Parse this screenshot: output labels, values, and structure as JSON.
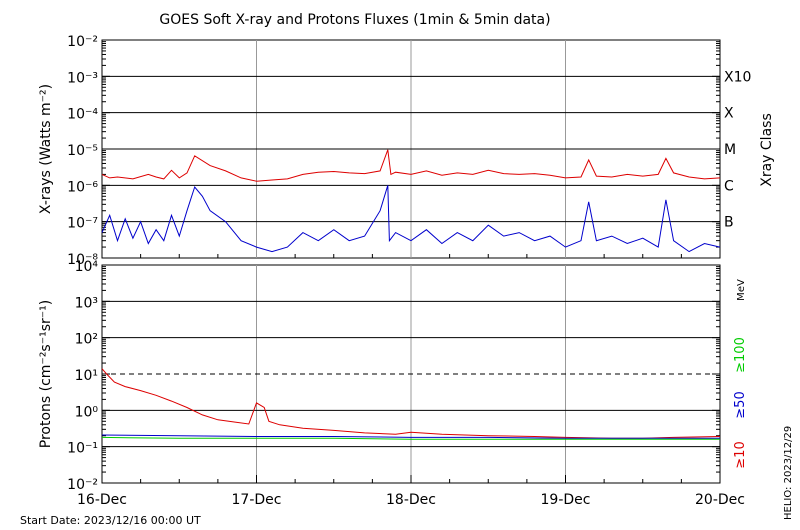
{
  "title": "GOES Soft X-ray and Protons Fluxes   (1min & 5min data)",
  "footer": {
    "start_date": "Start Date: 2023/12/16 00:00 UT",
    "stamp": "HELIO: 2023/12/29"
  },
  "chart_data": [
    {
      "type": "line",
      "panel": "xray",
      "ylabel": "X-rays (Watts m⁻²)",
      "yscale": "log",
      "ylim_exp": [
        -8,
        -2
      ],
      "ytick_exps": [
        -8,
        -7,
        -6,
        -5,
        -4,
        -3,
        -2
      ],
      "right_label": "Xray Class",
      "class_labels": [
        {
          "label": "X10",
          "exp": -3
        },
        {
          "label": "X",
          "exp": -4
        },
        {
          "label": "M",
          "exp": -5
        },
        {
          "label": "C",
          "exp": -6
        },
        {
          "label": "B",
          "exp": -7
        }
      ],
      "series": [
        {
          "color": "#dd0000",
          "points": [
            [
              0,
              2e-06
            ],
            [
              0.05,
              1.6e-06
            ],
            [
              0.1,
              1.7e-06
            ],
            [
              0.2,
              1.5e-06
            ],
            [
              0.3,
              2e-06
            ],
            [
              0.35,
              1.7e-06
            ],
            [
              0.4,
              1.5e-06
            ],
            [
              0.45,
              2.6e-06
            ],
            [
              0.5,
              1.6e-06
            ],
            [
              0.55,
              2.2e-06
            ],
            [
              0.6,
              6.5e-06
            ],
            [
              0.7,
              3.5e-06
            ],
            [
              0.8,
              2.5e-06
            ],
            [
              0.9,
              1.6e-06
            ],
            [
              1.0,
              1.3e-06
            ],
            [
              1.1,
              1.4e-06
            ],
            [
              1.2,
              1.5e-06
            ],
            [
              1.3,
              2e-06
            ],
            [
              1.4,
              2.3e-06
            ],
            [
              1.5,
              2.4e-06
            ],
            [
              1.6,
              2.2e-06
            ],
            [
              1.7,
              2.1e-06
            ],
            [
              1.8,
              2.5e-06
            ],
            [
              1.85,
              9.5e-06
            ],
            [
              1.87,
              2e-06
            ],
            [
              1.9,
              2.3e-06
            ],
            [
              2.0,
              2e-06
            ],
            [
              2.1,
              2.5e-06
            ],
            [
              2.2,
              1.9e-06
            ],
            [
              2.3,
              2.2e-06
            ],
            [
              2.4,
              2e-06
            ],
            [
              2.5,
              2.6e-06
            ],
            [
              2.6,
              2.1e-06
            ],
            [
              2.7,
              2e-06
            ],
            [
              2.8,
              2.1e-06
            ],
            [
              2.9,
              1.9e-06
            ],
            [
              3.0,
              1.6e-06
            ],
            [
              3.1,
              1.7e-06
            ],
            [
              3.15,
              5e-06
            ],
            [
              3.2,
              1.8e-06
            ],
            [
              3.3,
              1.7e-06
            ],
            [
              3.4,
              2e-06
            ],
            [
              3.5,
              1.8e-06
            ],
            [
              3.6,
              2e-06
            ],
            [
              3.65,
              5.5e-06
            ],
            [
              3.7,
              2.2e-06
            ],
            [
              3.8,
              1.7e-06
            ],
            [
              3.9,
              1.5e-06
            ],
            [
              4.0,
              1.6e-06
            ]
          ]
        },
        {
          "color": "#0000cc",
          "points": [
            [
              0,
              5e-08
            ],
            [
              0.05,
              1.5e-07
            ],
            [
              0.1,
              3e-08
            ],
            [
              0.15,
              1.2e-07
            ],
            [
              0.2,
              3.5e-08
            ],
            [
              0.25,
              1e-07
            ],
            [
              0.3,
              2.5e-08
            ],
            [
              0.35,
              6e-08
            ],
            [
              0.4,
              3e-08
            ],
            [
              0.45,
              1.5e-07
            ],
            [
              0.5,
              4e-08
            ],
            [
              0.55,
              2e-07
            ],
            [
              0.6,
              9e-07
            ],
            [
              0.65,
              5e-07
            ],
            [
              0.7,
              2e-07
            ],
            [
              0.8,
              1e-07
            ],
            [
              0.9,
              3e-08
            ],
            [
              1.0,
              2e-08
            ],
            [
              1.1,
              1.5e-08
            ],
            [
              1.2,
              2e-08
            ],
            [
              1.3,
              5e-08
            ],
            [
              1.4,
              3e-08
            ],
            [
              1.5,
              6e-08
            ],
            [
              1.6,
              3e-08
            ],
            [
              1.7,
              4e-08
            ],
            [
              1.8,
              2e-07
            ],
            [
              1.85,
              1e-06
            ],
            [
              1.86,
              3e-08
            ],
            [
              1.9,
              5e-08
            ],
            [
              2.0,
              3e-08
            ],
            [
              2.1,
              6e-08
            ],
            [
              2.2,
              2.5e-08
            ],
            [
              2.3,
              5e-08
            ],
            [
              2.4,
              3e-08
            ],
            [
              2.5,
              8e-08
            ],
            [
              2.6,
              4e-08
            ],
            [
              2.7,
              5e-08
            ],
            [
              2.8,
              3e-08
            ],
            [
              2.9,
              4e-08
            ],
            [
              3.0,
              2e-08
            ],
            [
              3.1,
              3e-08
            ],
            [
              3.15,
              3.5e-07
            ],
            [
              3.2,
              3e-08
            ],
            [
              3.3,
              4e-08
            ],
            [
              3.4,
              2.5e-08
            ],
            [
              3.5,
              3.5e-08
            ],
            [
              3.6,
              2e-08
            ],
            [
              3.65,
              4e-07
            ],
            [
              3.7,
              3e-08
            ],
            [
              3.8,
              1.5e-08
            ],
            [
              3.9,
              2.5e-08
            ],
            [
              4.0,
              2e-08
            ]
          ]
        }
      ]
    },
    {
      "type": "line",
      "panel": "protons",
      "ylabel": "Protons (cm⁻²s⁻¹sr⁻¹)",
      "yscale": "log",
      "ylim_exp": [
        -2,
        4
      ],
      "ytick_exps": [
        -2,
        -1,
        0,
        1,
        2,
        3,
        4
      ],
      "dashed_level_exp": 1,
      "right_labels": [
        {
          "label": "MeV",
          "color": "#000000"
        },
        {
          "label": "≥100",
          "color": "#00cc00"
        },
        {
          "label": "≥50",
          "color": "#0000cc"
        },
        {
          "label": "≥10",
          "color": "#dd0000"
        }
      ],
      "x_ticks": [
        "16-Dec",
        "17-Dec",
        "18-Dec",
        "19-Dec",
        "20-Dec"
      ],
      "xlim_days": [
        0,
        4
      ],
      "series": [
        {
          "name": "≥10",
          "color": "#dd0000",
          "points": [
            [
              0,
              14
            ],
            [
              0.03,
              10
            ],
            [
              0.08,
              6.0
            ],
            [
              0.15,
              4.5
            ],
            [
              0.25,
              3.5
            ],
            [
              0.35,
              2.6
            ],
            [
              0.45,
              1.8
            ],
            [
              0.55,
              1.2
            ],
            [
              0.65,
              0.75
            ],
            [
              0.75,
              0.55
            ],
            [
              0.85,
              0.48
            ],
            [
              0.95,
              0.42
            ],
            [
              1.0,
              1.6
            ],
            [
              1.05,
              1.2
            ],
            [
              1.08,
              0.5
            ],
            [
              1.15,
              0.4
            ],
            [
              1.3,
              0.32
            ],
            [
              1.5,
              0.28
            ],
            [
              1.7,
              0.24
            ],
            [
              1.9,
              0.22
            ],
            [
              2.0,
              0.25
            ],
            [
              2.2,
              0.22
            ],
            [
              2.5,
              0.2
            ],
            [
              2.8,
              0.19
            ],
            [
              3.0,
              0.18
            ],
            [
              3.3,
              0.17
            ],
            [
              3.5,
              0.17
            ],
            [
              3.7,
              0.18
            ],
            [
              4.0,
              0.19
            ]
          ]
        },
        {
          "name": "≥50",
          "color": "#0000cc",
          "points": [
            [
              0,
              0.21
            ],
            [
              0.5,
              0.2
            ],
            [
              1.0,
              0.19
            ],
            [
              1.5,
              0.19
            ],
            [
              2.0,
              0.18
            ],
            [
              2.5,
              0.18
            ],
            [
              3.0,
              0.17
            ],
            [
              3.5,
              0.17
            ],
            [
              4.0,
              0.17
            ]
          ]
        },
        {
          "name": "≥100",
          "color": "#00cc00",
          "points": [
            [
              0,
              0.18
            ],
            [
              0.5,
              0.17
            ],
            [
              1.0,
              0.17
            ],
            [
              1.5,
              0.17
            ],
            [
              2.0,
              0.16
            ],
            [
              2.5,
              0.16
            ],
            [
              3.0,
              0.16
            ],
            [
              3.5,
              0.16
            ],
            [
              4.0,
              0.16
            ]
          ]
        }
      ]
    }
  ]
}
